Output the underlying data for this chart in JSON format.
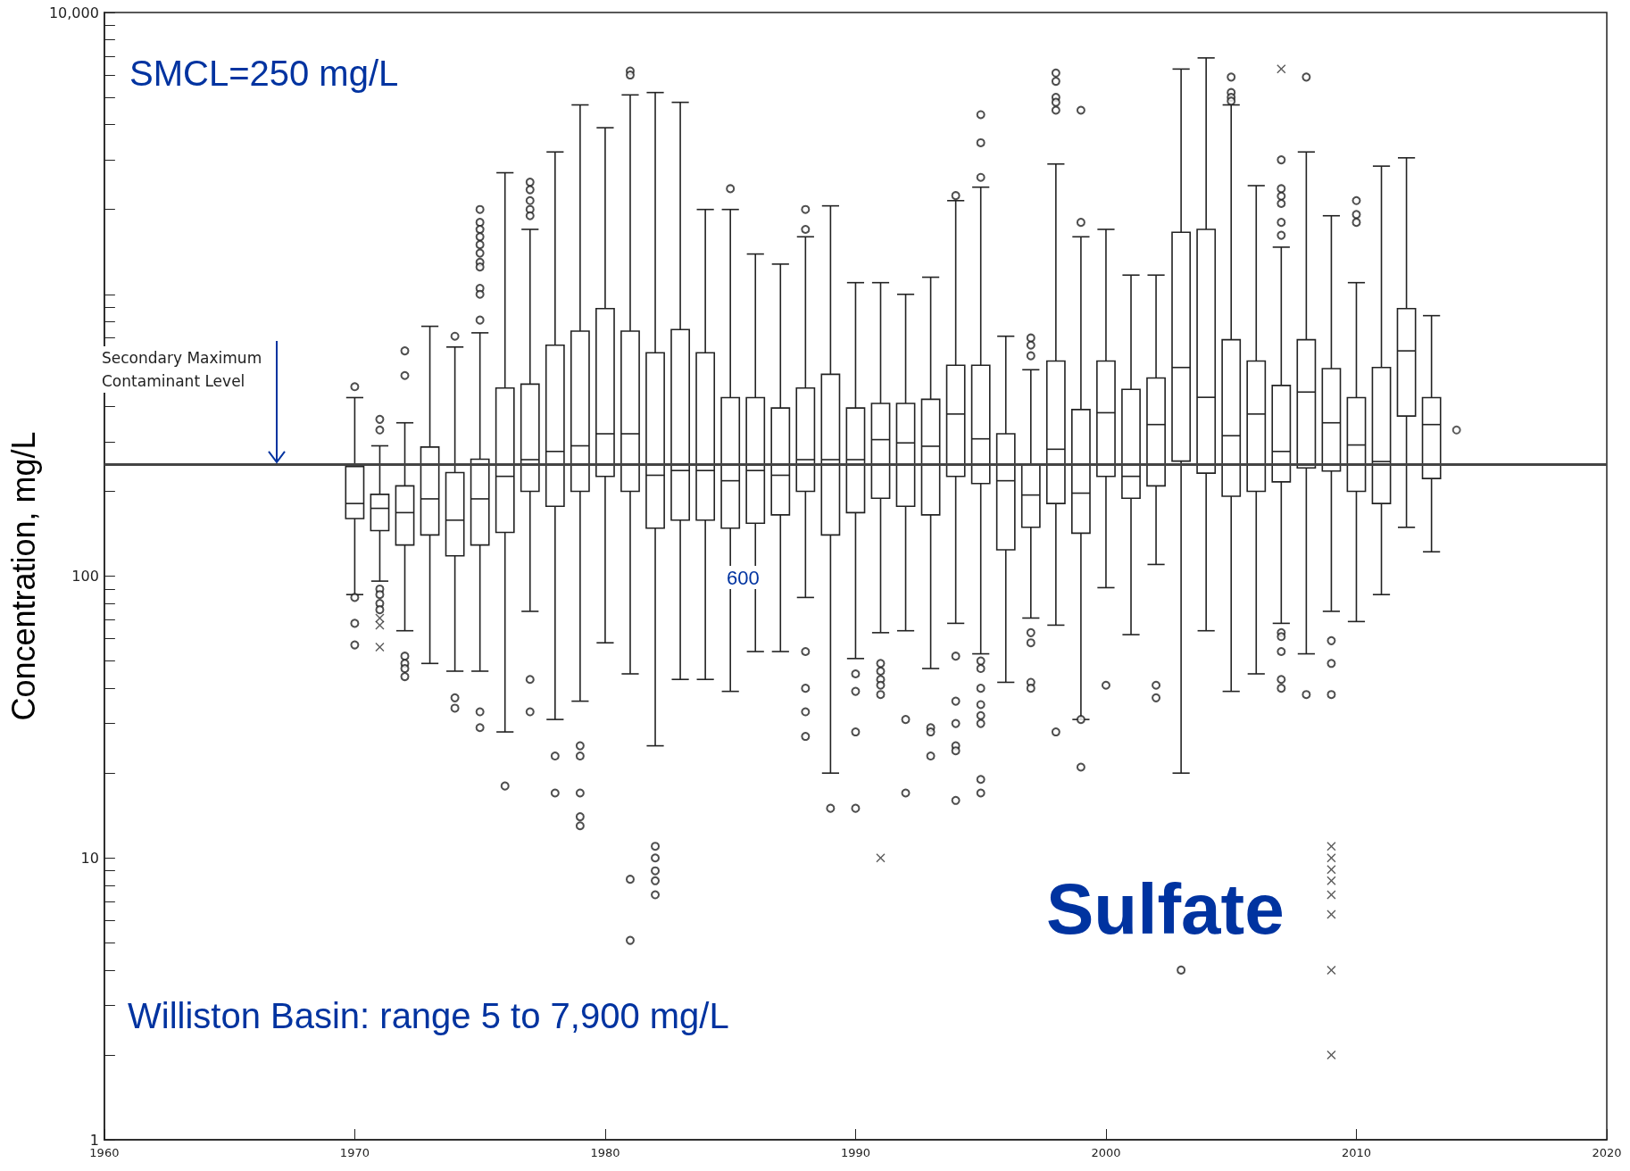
{
  "chart_data": {
    "type": "box",
    "ylabel": "Concentration, mg/L",
    "annotations": [
      "SMCL=250 mg/L",
      "Williston Basin: range 5 to 7,900 mg/L",
      "Sulfate",
      "600"
    ],
    "x": [
      1970,
      1971,
      1972,
      1973,
      1974,
      1975,
      1976,
      1977,
      1978,
      1979,
      1980,
      1981,
      1982,
      1983,
      1984,
      1985,
      1986,
      1987,
      1988,
      1989,
      1990,
      1991,
      1992,
      1993,
      1994,
      1995,
      1996,
      1997,
      1998,
      1999,
      2000,
      2001,
      2002,
      2003,
      2004,
      2005,
      2006,
      2007,
      2008,
      2009,
      2010,
      2011,
      2012,
      2013
    ],
    "boxes": [
      {
        "low": 86,
        "q1": 160,
        "median": 181,
        "q3": 245,
        "high": 430,
        "outliers": [
          470,
          84,
          68,
          57
        ]
      },
      {
        "low": 96,
        "q1": 145,
        "median": 174,
        "q3": 195,
        "high": 290,
        "outliers": [
          360,
          330,
          90,
          86,
          80,
          76
        ]
      },
      {
        "low": 64,
        "q1": 129,
        "median": 168,
        "q3": 209,
        "high": 350,
        "outliers": [
          630,
          515,
          52,
          49,
          47,
          44
        ]
      },
      {
        "low": 49,
        "q1": 140,
        "median": 188,
        "q3": 287,
        "high": 770
      },
      {
        "low": 46,
        "q1": 118,
        "median": 158,
        "q3": 233,
        "high": 650,
        "outliers": [
          710,
          37,
          34
        ]
      },
      {
        "low": 46,
        "q1": 129,
        "median": 188,
        "q3": 260,
        "high": 730,
        "outliers": [
          2000,
          1800,
          1700,
          1600,
          1500,
          1400,
          1300,
          1250,
          1050,
          1000,
          810,
          33,
          29
        ]
      },
      {
        "low": 28,
        "q1": 143,
        "median": 226,
        "q3": 465,
        "high": 2700,
        "outliers": [
          18
        ]
      },
      {
        "low": 75,
        "q1": 200,
        "median": 259,
        "q3": 480,
        "high": 1700,
        "outliers": [
          2500,
          2350,
          2150,
          2000,
          1900,
          43,
          33
        ]
      },
      {
        "low": 31,
        "q1": 177,
        "median": 277,
        "q3": 660,
        "high": 3200,
        "outliers": [
          23,
          17
        ]
      },
      {
        "low": 36,
        "q1": 200,
        "median": 290,
        "q3": 740,
        "high": 4700,
        "outliers": [
          25,
          23,
          17,
          14,
          13
        ]
      },
      {
        "low": 58,
        "q1": 226,
        "median": 320,
        "q3": 890,
        "high": 3900
      },
      {
        "low": 45,
        "q1": 200,
        "median": 320,
        "q3": 740,
        "high": 5100,
        "outliers": [
          6200,
          6000,
          8.4,
          5.1
        ]
      },
      {
        "low": 25,
        "q1": 148,
        "median": 228,
        "q3": 620,
        "high": 5200,
        "outliers": [
          11,
          10,
          9,
          8.3,
          7.4
        ]
      },
      {
        "low": 43,
        "q1": 158,
        "median": 237,
        "q3": 750,
        "high": 4800
      },
      {
        "low": 43,
        "q1": 158,
        "median": 237,
        "q3": 620,
        "high": 2000
      },
      {
        "low": 39,
        "q1": 148,
        "median": 218,
        "q3": 430,
        "high": 2000,
        "outliers": [
          2370
        ]
      },
      {
        "low": 54,
        "q1": 154,
        "median": 237,
        "q3": 430,
        "high": 1390
      },
      {
        "low": 54,
        "q1": 165,
        "median": 228,
        "q3": 395,
        "high": 1280
      },
      {
        "low": 84,
        "q1": 200,
        "median": 259,
        "q3": 465,
        "high": 1600,
        "outliers": [
          2000,
          1700,
          54,
          40,
          33,
          27
        ]
      },
      {
        "low": 20,
        "q1": 140,
        "median": 259,
        "q3": 520,
        "high": 2060,
        "outliers": [
          15
        ]
      },
      {
        "low": 51,
        "q1": 168,
        "median": 259,
        "q3": 395,
        "high": 1100,
        "outliers": [
          45,
          39,
          28,
          15
        ]
      },
      {
        "low": 63,
        "q1": 189,
        "median": 305,
        "q3": 410,
        "high": 1100,
        "outliers": [
          49,
          46,
          43,
          41,
          38
        ]
      },
      {
        "low": 64,
        "q1": 177,
        "median": 297,
        "q3": 410,
        "high": 1000,
        "outliers": [
          31,
          17
        ]
      },
      {
        "low": 47,
        "q1": 165,
        "median": 289,
        "q3": 424,
        "high": 1150,
        "outliers": [
          29,
          28,
          23
        ]
      },
      {
        "low": 68,
        "q1": 226,
        "median": 376,
        "q3": 560,
        "high": 2150,
        "outliers": [
          2240,
          52,
          36,
          30,
          25,
          24,
          16
        ]
      },
      {
        "low": 53,
        "q1": 213,
        "median": 307,
        "q3": 560,
        "high": 2400,
        "outliers": [
          4340,
          3450,
          2600,
          50,
          47,
          40,
          35,
          32,
          30,
          19,
          17
        ]
      },
      {
        "low": 42,
        "q1": 124,
        "median": 218,
        "q3": 320,
        "high": 710
      },
      {
        "low": 71,
        "q1": 149,
        "median": 194,
        "q3": 250,
        "high": 540,
        "outliers": [
          700,
          660,
          605,
          63,
          58,
          42,
          40
        ]
      },
      {
        "low": 67,
        "q1": 181,
        "median": 282,
        "q3": 580,
        "high": 2900,
        "outliers": [
          6100,
          5700,
          5000,
          4800,
          4500,
          28
        ]
      },
      {
        "low": 31,
        "q1": 142,
        "median": 197,
        "q3": 390,
        "high": 1600,
        "outliers": [
          4500,
          1800,
          31,
          21
        ]
      },
      {
        "low": 91,
        "q1": 226,
        "median": 380,
        "q3": 580,
        "high": 1700,
        "outliers": [
          41
        ]
      },
      {
        "low": 62,
        "q1": 189,
        "median": 226,
        "q3": 460,
        "high": 1170
      },
      {
        "low": 110,
        "q1": 209,
        "median": 345,
        "q3": 505,
        "high": 1170,
        "outliers": [
          41,
          37
        ]
      },
      {
        "low": 20,
        "q1": 256,
        "median": 550,
        "q3": 1660,
        "high": 6300,
        "outliers": [
          4
        ]
      },
      {
        "low": 64,
        "q1": 232,
        "median": 431,
        "q3": 1700,
        "high": 6900
      },
      {
        "low": 39,
        "q1": 192,
        "median": 315,
        "q3": 690,
        "high": 4700,
        "outliers": [
          5900,
          5200,
          5000,
          4850
        ]
      },
      {
        "low": 45,
        "q1": 200,
        "median": 376,
        "q3": 580,
        "high": 2430
      },
      {
        "low": 68,
        "q1": 216,
        "median": 277,
        "q3": 475,
        "high": 1470,
        "outliers": [
          3000,
          2370,
          2230,
          2100,
          1800,
          1620,
          63,
          61,
          54,
          43,
          40
        ]
      },
      {
        "low": 53,
        "q1": 242,
        "median": 450,
        "q3": 690,
        "high": 3200,
        "outliers": [
          5900,
          38
        ]
      },
      {
        "low": 75,
        "q1": 236,
        "median": 350,
        "q3": 545,
        "high": 1900,
        "outliers": [
          59,
          49,
          38
        ]
      },
      {
        "low": 69,
        "q1": 200,
        "median": 292,
        "q3": 430,
        "high": 1100,
        "outliers": [
          2150,
          1920,
          1800
        ]
      },
      {
        "low": 86,
        "q1": 181,
        "median": 255,
        "q3": 550,
        "high": 2850
      },
      {
        "low": 149,
        "q1": 370,
        "median": 630,
        "q3": 890,
        "high": 3050
      },
      {
        "low": 122,
        "q1": 222,
        "median": 345,
        "q3": 430,
        "high": 840
      }
    ],
    "series": [
      {
        "type": "scatter",
        "marker": "cross",
        "color": "#333333",
        "x": [
          1971,
          1971,
          1971,
          1991,
          2007,
          2009,
          2009,
          2009,
          2009,
          2009,
          2009,
          2009,
          2009
        ],
        "values": [
          71,
          67,
          56,
          10,
          6300,
          11,
          10,
          9.1,
          8.3,
          7.4,
          6.3,
          4,
          2
        ]
      },
      {
        "type": "scatter",
        "marker": "circle",
        "color": "#333333",
        "x": [
          2014
        ],
        "values": [
          330
        ]
      }
    ],
    "xlim": [
      1960,
      2020
    ],
    "xticks": [
      1960,
      1970,
      1980,
      1990,
      2000,
      2010,
      2020
    ],
    "ylim": [
      1,
      10000
    ],
    "log": true,
    "yticks": [
      {
        "value": 1,
        "label": "1"
      },
      {
        "value": 2,
        "label": null
      },
      {
        "value": 3,
        "label": null
      },
      {
        "value": 4,
        "label": null
      },
      {
        "value": 5,
        "label": null
      },
      {
        "value": 6,
        "label": null
      },
      {
        "value": 7,
        "label": null
      },
      {
        "value": 8,
        "label": null
      },
      {
        "value": 9,
        "label": null
      },
      {
        "value": 10,
        "label": "10"
      },
      {
        "value": 20,
        "label": null
      },
      {
        "value": 30,
        "label": null
      },
      {
        "value": 40,
        "label": null
      },
      {
        "value": 50,
        "label": null
      },
      {
        "value": 60,
        "label": null
      },
      {
        "value": 70,
        "label": null
      },
      {
        "value": 80,
        "label": null
      },
      {
        "value": 90,
        "label": null
      },
      {
        "value": 100,
        "label": "100"
      },
      {
        "value": 200,
        "label": null
      },
      {
        "value": 300,
        "label": null
      },
      {
        "value": 400,
        "label": null
      },
      {
        "value": 500,
        "label": null
      },
      {
        "value": 600,
        "label": null
      },
      {
        "value": 700,
        "label": null
      },
      {
        "value": 800,
        "label": null
      },
      {
        "value": 900,
        "label": null
      },
      {
        "value": 1000,
        "label": null
      },
      {
        "value": 2000,
        "label": null
      },
      {
        "value": 3000,
        "label": null
      },
      {
        "value": 4000,
        "label": null
      },
      {
        "value": 5000,
        "label": null
      },
      {
        "value": 6000,
        "label": null
      },
      {
        "value": 7000,
        "label": null
      },
      {
        "value": 8000,
        "label": null
      },
      {
        "value": 9000,
        "label": null
      },
      {
        "value": 10000,
        "label": "10,000"
      }
    ],
    "ref_lines": [
      {
        "axis": "y",
        "value": 250,
        "label": "Secondary Maximum Contaminant Level",
        "color": "#444444"
      }
    ],
    "grid": false,
    "marker": "circle"
  }
}
